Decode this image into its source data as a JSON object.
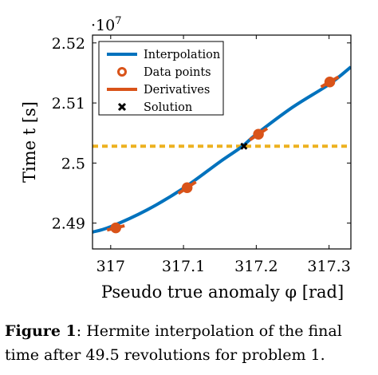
{
  "chart_data": {
    "type": "line",
    "xlabel": "Pseudo true anomaly φ [rad]",
    "ylabel": "Time t [s]",
    "y_multiplier_label": "·10",
    "y_multiplier_exponent": "7",
    "xlim": [
      316.975,
      317.33
    ],
    "ylim": [
      2.4857,
      2.5213
    ],
    "xticks": [
      317,
      317.1,
      317.2,
      317.3
    ],
    "xtick_labels": [
      "317",
      "317.1",
      "317.2",
      "317.3"
    ],
    "yticks": [
      2.49,
      2.5,
      2.51,
      2.52
    ],
    "ytick_labels": [
      "2.49",
      "2.5",
      "2.51",
      "2.52"
    ],
    "grid": false,
    "legend_position": "top-left",
    "series": [
      {
        "name": "Interpolation",
        "style": "line",
        "color": "#0072bd",
        "x": [
          316.975,
          317.0,
          317.05,
          317.1,
          317.15,
          317.18,
          317.2,
          317.25,
          317.3,
          317.33
        ],
        "y": [
          2.4885,
          2.4894,
          2.4922,
          2.4958,
          2.5002,
          2.5027,
          2.5048,
          2.5093,
          2.5131,
          2.516
        ]
      },
      {
        "name": "Data points",
        "style": "marker",
        "color": "#d95319",
        "x": [
          317.007,
          317.105,
          317.203,
          317.301
        ],
        "y": [
          2.4892,
          2.4959,
          2.5048,
          2.5135
        ]
      },
      {
        "name": "Derivatives",
        "style": "segments",
        "color": "#d95319",
        "x": [
          317.007,
          317.105,
          317.203,
          317.301
        ],
        "y": [
          2.4892,
          2.4959,
          2.5048,
          2.5135
        ],
        "slopes": [
          0.03,
          0.08,
          0.08,
          0.07
        ]
      },
      {
        "name": "Solution",
        "style": "marker",
        "color": "#000000",
        "x": [
          317.183
        ],
        "y": [
          2.5028
        ]
      }
    ],
    "reference_line": {
      "y": 2.5028,
      "color": "#edb120",
      "style": "dashed"
    }
  },
  "caption": {
    "figure_label": "Figure 1",
    "text": ": Hermite interpolation of the final time after 49.5 revolutions for problem 1."
  }
}
